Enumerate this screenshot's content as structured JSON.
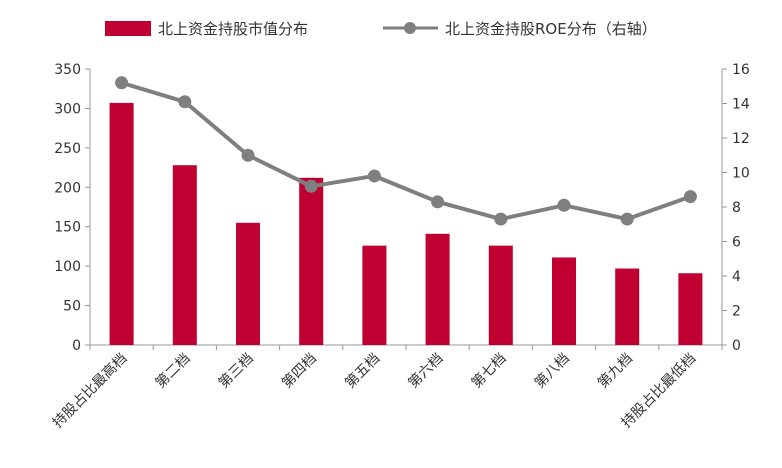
{
  "chart_data": {
    "type": "bar",
    "categories": [
      "持股占比最高档",
      "第二档",
      "第三档",
      "第四档",
      "第五档",
      "第六档",
      "第七档",
      "第八档",
      "第九档",
      "持股占比最低档"
    ],
    "series": [
      {
        "name": "北上资金持股市值分布",
        "type": "bar",
        "axis": "left",
        "color": "#C00030",
        "values": [
          307,
          228,
          155,
          212,
          126,
          141,
          126,
          111,
          97,
          91
        ]
      },
      {
        "name": "北上资金持股ROE分布（右轴）",
        "type": "line",
        "axis": "right",
        "color": "#7F7F7F",
        "marker": "circle",
        "values": [
          15.2,
          14.1,
          11.0,
          9.2,
          9.8,
          8.3,
          7.3,
          8.1,
          7.3,
          8.6
        ]
      }
    ],
    "y_left": {
      "min": 0,
      "max": 350,
      "ticks": [
        0,
        50,
        100,
        150,
        200,
        250,
        300,
        350
      ]
    },
    "y_right": {
      "min": 0,
      "max": 16,
      "ticks": [
        0,
        2,
        4,
        6,
        8,
        10,
        12,
        14,
        16
      ]
    },
    "legend_position": "top",
    "grid": false
  }
}
